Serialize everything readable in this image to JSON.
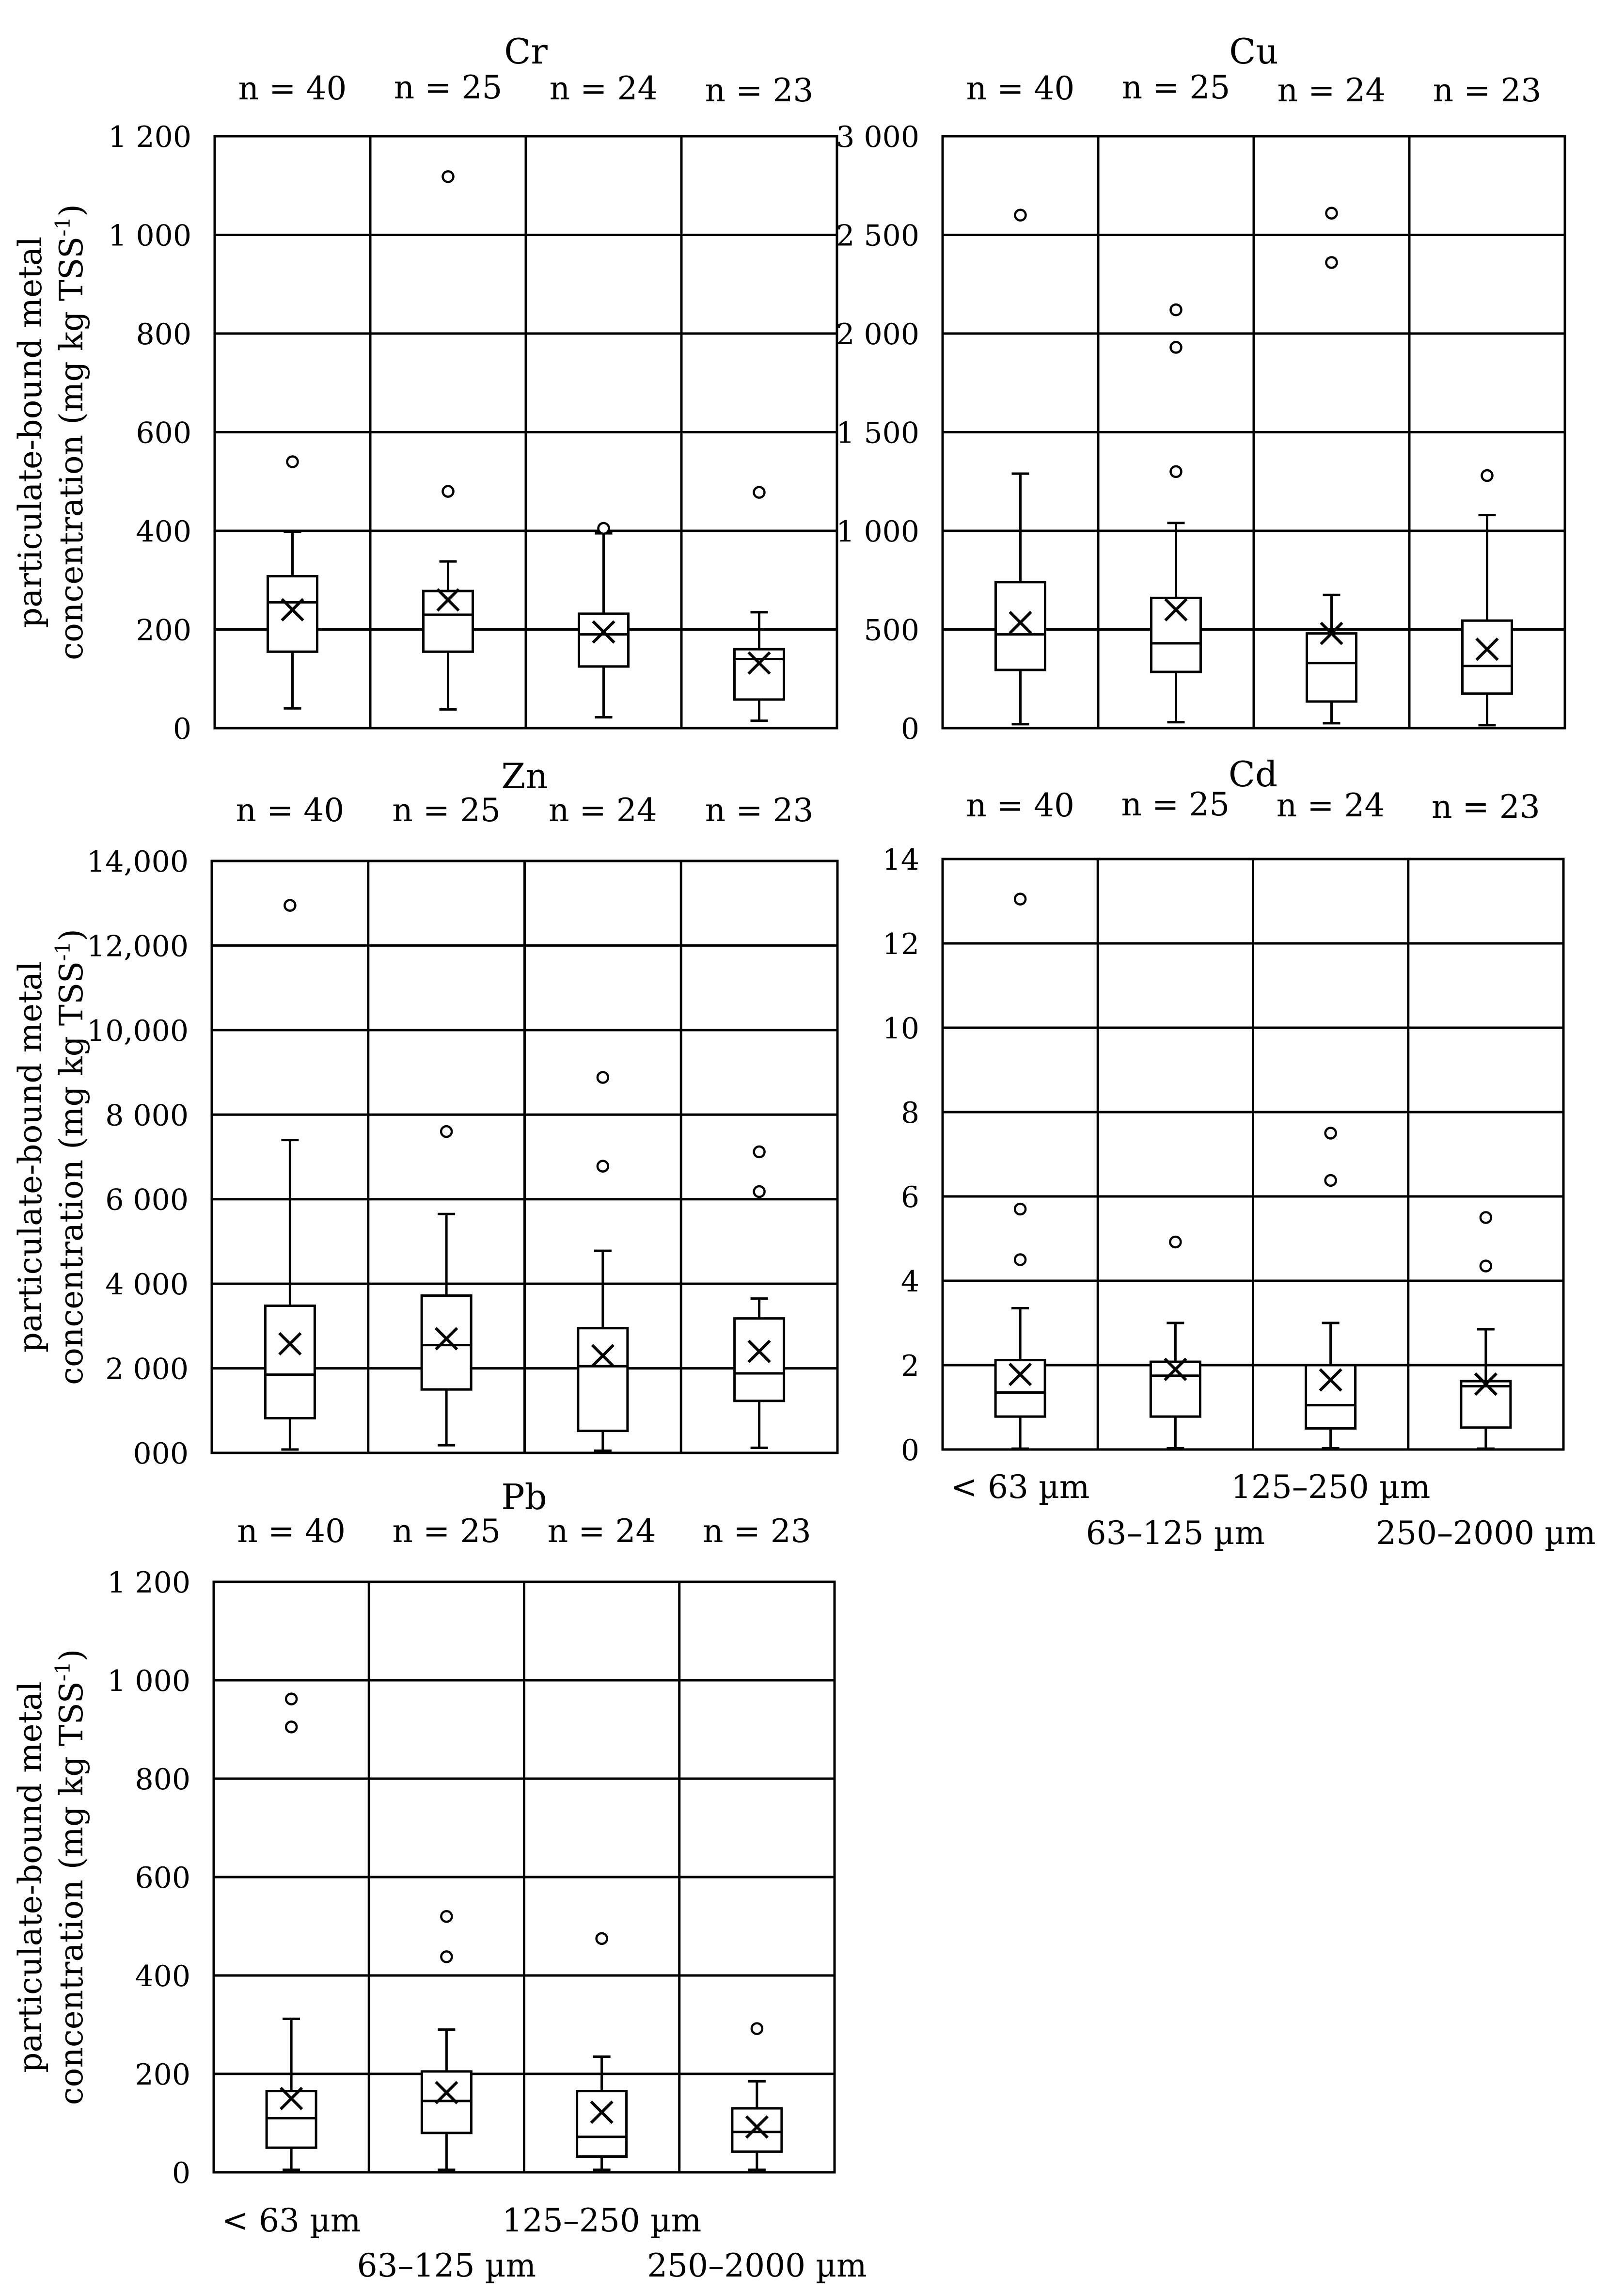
{
  "figure": {
    "y_axis_label_line1": "particulate-bound  metal",
    "y_axis_label_line2": "concentration (mg kg TSS",
    "y_axis_label_sup": "-1",
    "y_axis_label_close": ")",
    "categories": [
      "< 63 µm",
      "63–125 µm",
      "125–250 µm",
      "250–2000 µm"
    ]
  },
  "chart_data": [
    {
      "type": "box",
      "title": "Cr",
      "ylim": [
        0,
        1200
      ],
      "yticks": [
        0,
        200,
        400,
        600,
        800,
        1000,
        1200
      ],
      "ytick_labels": [
        "0",
        "200",
        "400",
        "600",
        "800",
        "1 000",
        "1 200"
      ],
      "n_labels": [
        "n = 40",
        "n = 25",
        "n = 24",
        "n = 23"
      ],
      "show_x_labels": false,
      "boxes": [
        {
          "min": 40,
          "q1": 155,
          "median": 255,
          "q3": 308,
          "max": 398,
          "mean": 240,
          "outliers": [
            540
          ]
        },
        {
          "min": 38,
          "q1": 155,
          "median": 230,
          "q3": 278,
          "max": 338,
          "mean": 260,
          "outliers": [
            480,
            1118
          ]
        },
        {
          "min": 22,
          "q1": 125,
          "median": 190,
          "q3": 232,
          "max": 395,
          "mean": 195,
          "outliers": [
            405
          ]
        },
        {
          "min": 15,
          "q1": 58,
          "median": 140,
          "q3": 160,
          "max": 235,
          "mean": 132,
          "outliers": [
            478
          ]
        }
      ]
    },
    {
      "type": "box",
      "title": "Cu",
      "ylim": [
        0,
        3000
      ],
      "yticks": [
        0,
        500,
        1000,
        1500,
        2000,
        2500,
        3000
      ],
      "ytick_labels": [
        "0",
        "500",
        "1 000",
        "1 500",
        "2 000",
        "2 500",
        "3 000"
      ],
      "n_labels": [
        "n = 40",
        "n = 25",
        "n = 24",
        "n = 23"
      ],
      "show_x_labels": false,
      "boxes": [
        {
          "min": 20,
          "q1": 295,
          "median": 475,
          "q3": 740,
          "max": 1290,
          "mean": 535,
          "outliers": [
            2600
          ]
        },
        {
          "min": 30,
          "q1": 285,
          "median": 430,
          "q3": 660,
          "max": 1040,
          "mean": 600,
          "outliers": [
            1300,
            1930,
            2120
          ]
        },
        {
          "min": 25,
          "q1": 135,
          "median": 330,
          "q3": 480,
          "max": 675,
          "mean": 480,
          "outliers": [
            2360,
            2610
          ]
        },
        {
          "min": 15,
          "q1": 175,
          "median": 315,
          "q3": 545,
          "max": 1080,
          "mean": 400,
          "outliers": [
            1280
          ]
        }
      ]
    },
    {
      "type": "box",
      "title": "Zn",
      "ylim": [
        0,
        14000
      ],
      "yticks": [
        0,
        2000,
        4000,
        6000,
        8000,
        10000,
        12000,
        14000
      ],
      "ytick_labels": [
        "000",
        "2 000",
        "4 000",
        "6 000",
        "8 000",
        "10,000",
        "12,000",
        "14,000"
      ],
      "n_labels": [
        "n = 40",
        "n = 25",
        "n = 24",
        "n = 23"
      ],
      "show_x_labels": false,
      "boxes": [
        {
          "min": 80,
          "q1": 820,
          "median": 1850,
          "q3": 3480,
          "max": 7400,
          "mean": 2580,
          "outliers": [
            12950
          ]
        },
        {
          "min": 180,
          "q1": 1500,
          "median": 2550,
          "q3": 3720,
          "max": 5650,
          "mean": 2700,
          "outliers": [
            7600
          ]
        },
        {
          "min": 50,
          "q1": 520,
          "median": 2050,
          "q3": 2950,
          "max": 4780,
          "mean": 2300,
          "outliers": [
            6780,
            8880
          ]
        },
        {
          "min": 120,
          "q1": 1230,
          "median": 1880,
          "q3": 3180,
          "max": 3650,
          "mean": 2400,
          "outliers": [
            6180,
            7120
          ]
        }
      ]
    },
    {
      "type": "box",
      "title": "Cd",
      "ylim": [
        0,
        14
      ],
      "yticks": [
        0,
        2,
        4,
        6,
        8,
        10,
        12,
        14
      ],
      "ytick_labels": [
        "0",
        "2",
        "4",
        "6",
        "8",
        "10",
        "12",
        "14"
      ],
      "n_labels": [
        "n = 40",
        "n = 25",
        "n = 24",
        "n = 23"
      ],
      "show_x_labels": true,
      "boxes": [
        {
          "min": 0.02,
          "q1": 0.78,
          "median": 1.35,
          "q3": 2.12,
          "max": 3.35,
          "mean": 1.78,
          "outliers": [
            4.5,
            5.7,
            13.05
          ]
        },
        {
          "min": 0.03,
          "q1": 0.78,
          "median": 1.75,
          "q3": 2.08,
          "max": 3.0,
          "mean": 1.9,
          "outliers": [
            4.92
          ]
        },
        {
          "min": 0.03,
          "q1": 0.5,
          "median": 1.05,
          "q3": 2.0,
          "max": 3.0,
          "mean": 1.65,
          "outliers": [
            6.38,
            7.5
          ]
        },
        {
          "min": 0.02,
          "q1": 0.52,
          "median": 1.5,
          "q3": 1.62,
          "max": 2.85,
          "mean": 1.55,
          "outliers": [
            4.35,
            5.5
          ]
        }
      ]
    },
    {
      "type": "box",
      "title": "Pb",
      "ylim": [
        0,
        1200
      ],
      "yticks": [
        0,
        200,
        400,
        600,
        800,
        1000,
        1200
      ],
      "ytick_labels": [
        "0",
        "200",
        "400",
        "600",
        "800",
        "1 000",
        "1 200"
      ],
      "n_labels": [
        "n = 40",
        "n = 25",
        "n = 24",
        "n = 23"
      ],
      "show_x_labels": true,
      "boxes": [
        {
          "min": 5,
          "q1": 50,
          "median": 110,
          "q3": 165,
          "max": 312,
          "mean": 150,
          "outliers": [
            905,
            962
          ]
        },
        {
          "min": 5,
          "q1": 80,
          "median": 145,
          "q3": 205,
          "max": 290,
          "mean": 162,
          "outliers": [
            438,
            520
          ]
        },
        {
          "min": 5,
          "q1": 32,
          "median": 72,
          "q3": 165,
          "max": 235,
          "mean": 122,
          "outliers": [
            475
          ]
        },
        {
          "min": 5,
          "q1": 42,
          "median": 82,
          "q3": 130,
          "max": 185,
          "mean": 92,
          "outliers": [
            292
          ]
        }
      ]
    }
  ]
}
